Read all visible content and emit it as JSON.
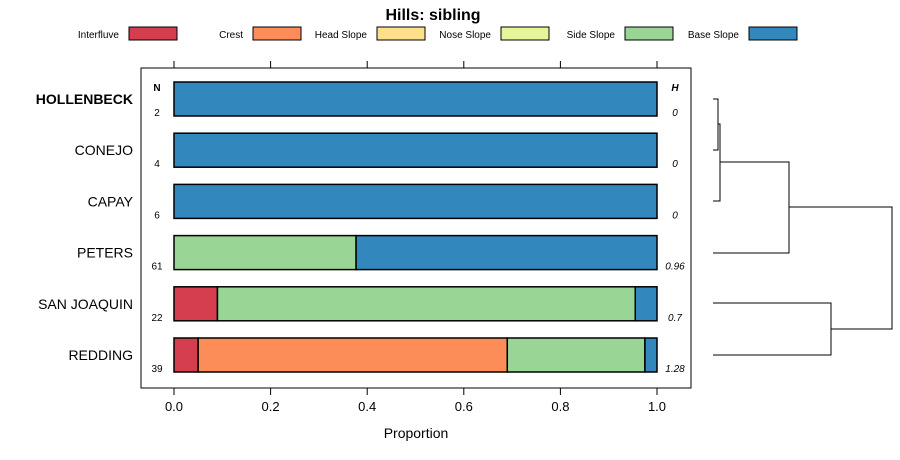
{
  "chart_data": {
    "type": "bar",
    "orientation": "horizontal",
    "stacked": true,
    "title": "Hills: sibling",
    "xlabel": "Proportion",
    "xlim": [
      0,
      1
    ],
    "xticks": [
      "0.0",
      "0.2",
      "0.4",
      "0.6",
      "0.8",
      "1.0"
    ],
    "n_header": "N",
    "h_header": "H",
    "categories": [
      "HOLLENBECK",
      "CONEJO",
      "CAPAY",
      "PETERS",
      "SAN JOAQUIN",
      "REDDING"
    ],
    "highlight": "HOLLENBECK",
    "n": [
      "2",
      "4",
      "6",
      "61",
      "22",
      "39"
    ],
    "h": [
      "0",
      "0",
      "0",
      "0.96",
      "0.7",
      "1.28"
    ],
    "series": [
      {
        "name": "Interfluve",
        "color": "#D53E4F",
        "values": [
          0,
          0,
          0,
          0,
          0.09,
          0.05
        ]
      },
      {
        "name": "Crest",
        "color": "#FC8D59",
        "values": [
          0,
          0,
          0,
          0,
          0,
          0.64
        ]
      },
      {
        "name": "Head Slope",
        "color": "#FEE08B",
        "values": [
          0,
          0,
          0,
          0,
          0,
          0
        ]
      },
      {
        "name": "Nose Slope",
        "color": "#E6F598",
        "values": [
          0,
          0,
          0,
          0,
          0,
          0
        ]
      },
      {
        "name": "Side Slope",
        "color": "#99D594",
        "values": [
          0,
          0,
          0,
          0.377,
          0.865,
          0.285
        ]
      },
      {
        "name": "Base Slope",
        "color": "#3288BD",
        "values": [
          1,
          1,
          1,
          0.623,
          0.045,
          0.025
        ]
      }
    ]
  }
}
